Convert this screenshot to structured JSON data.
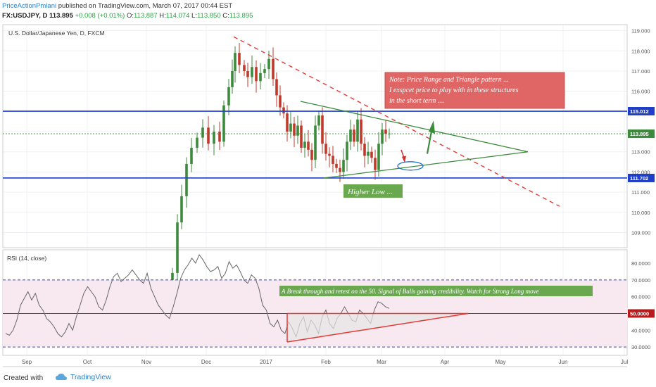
{
  "header": {
    "author": "PriceActionPmlani",
    "published": "published on TradingView.com, March 07, 2017 00:44 EST",
    "symbol": "FX:USDJPY, D",
    "last": "113.895",
    "change": "+0.008 (+0.01%)",
    "o_label": "O:",
    "o": "113.887",
    "h_label": "H:",
    "h": "114.074",
    "l_label": "L:",
    "l": "113.850",
    "c_label": "C:",
    "c": "113.895"
  },
  "colors": {
    "up": "#3c8a3c",
    "down": "#c0392b",
    "trendline": "#3c8a3c",
    "level": "#1f3fc8",
    "resistance_dashed": "#e53935",
    "note_bg": "#e06666",
    "green_box": "#6aa84f",
    "rsi_line": "#666666",
    "rsi_band": "#f7e9ef"
  },
  "chart_data": [
    {
      "type": "candlestick",
      "title": "U.S. Dollar/Japanese Yen, D, FXCM",
      "x_ticks": [
        "Sep",
        "Oct",
        "Nov",
        "Dec",
        "2017",
        "Feb",
        "Mar",
        "Apr",
        "May",
        "Jun",
        "Jul"
      ],
      "y_ticks": [
        109.0,
        110.0,
        111.0,
        112.0,
        113.0,
        114.0,
        115.0,
        116.0,
        117.0,
        118.0,
        119.0
      ],
      "ylim": [
        108.25,
        119.3
      ],
      "price_labels": [
        {
          "value": 115.012,
          "text": "115.012",
          "style": "level"
        },
        {
          "value": 113.895,
          "text": "113.895",
          "style": "last"
        },
        {
          "value": 111.702,
          "text": "111.702",
          "style": "level"
        }
      ],
      "annotations": {
        "note": [
          "Note: Price Range and Triangle pattern ...",
          "I exspcet price to play with in these structures",
          " in the short term ...."
        ],
        "higher_low": "Higher Low ..."
      },
      "candles_summary": "Daily OHLC from early Nov 2016 to Mar 07 2017, rallying from ~104 to a high near 118.7 mid Dec, then ranging 111.7–115.5"
    },
    {
      "type": "line",
      "title": "RSI (14, close)",
      "y_ticks": [
        30.0,
        40.0,
        50.0,
        60.0,
        70.0,
        80.0
      ],
      "ylim": [
        25,
        88
      ],
      "levels": [
        70,
        50,
        30
      ],
      "level_label": "50.0000",
      "annotation": "A Break through and retest on the 50. Signal of Bulls gaining credibility. Watch for Strong Long move"
    }
  ]
}
